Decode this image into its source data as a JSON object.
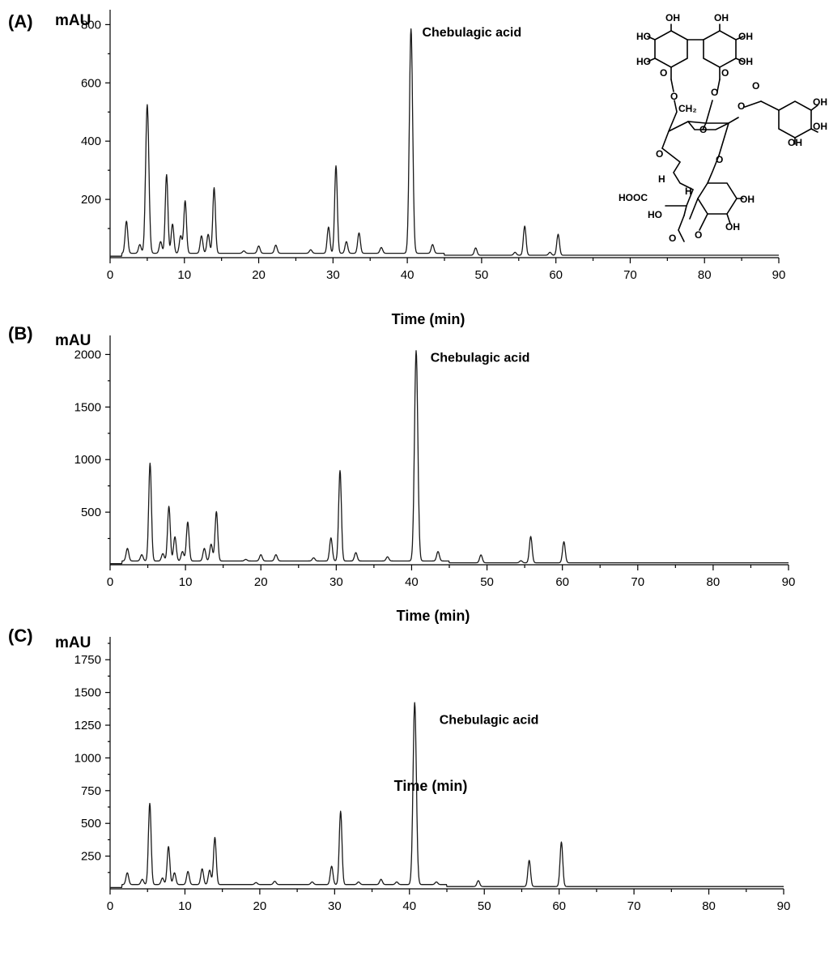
{
  "chart_data": [
    {
      "type": "line",
      "panel_label": "(A)",
      "ylabel": "mAU",
      "xlabel": "Time (min)",
      "xlim": [
        0,
        90
      ],
      "ylim": [
        0,
        840
      ],
      "x_ticks": [
        0,
        10,
        20,
        30,
        40,
        50,
        60,
        70,
        80,
        90
      ],
      "y_ticks": [
        200,
        400,
        600,
        800
      ],
      "annotation": {
        "text": "Chebulagic acid",
        "x": 42,
        "y": 760
      },
      "baseline": 5,
      "peaks": [
        {
          "t": 2.2,
          "h": 110
        },
        {
          "t": 4.0,
          "h": 30
        },
        {
          "t": 5.0,
          "h": 510
        },
        {
          "t": 6.8,
          "h": 40
        },
        {
          "t": 7.6,
          "h": 270
        },
        {
          "t": 8.4,
          "h": 100
        },
        {
          "t": 9.5,
          "h": 60
        },
        {
          "t": 10.1,
          "h": 180
        },
        {
          "t": 12.3,
          "h": 60
        },
        {
          "t": 13.2,
          "h": 65
        },
        {
          "t": 14.0,
          "h": 225
        },
        {
          "t": 18.0,
          "h": 8
        },
        {
          "t": 20.0,
          "h": 25
        },
        {
          "t": 22.3,
          "h": 28
        },
        {
          "t": 27.0,
          "h": 12
        },
        {
          "t": 29.4,
          "h": 90
        },
        {
          "t": 30.4,
          "h": 300
        },
        {
          "t": 31.8,
          "h": 40
        },
        {
          "t": 33.5,
          "h": 70
        },
        {
          "t": 36.5,
          "h": 20
        },
        {
          "t": 40.5,
          "h": 770
        },
        {
          "t": 43.4,
          "h": 30
        },
        {
          "t": 49.2,
          "h": 25
        },
        {
          "t": 54.5,
          "h": 10
        },
        {
          "t": 55.8,
          "h": 100
        },
        {
          "t": 59.2,
          "h": 10
        },
        {
          "t": 60.3,
          "h": 72
        }
      ]
    },
    {
      "type": "line",
      "panel_label": "(B)",
      "ylabel": "mAU",
      "xlabel": "Time (min)",
      "xlim": [
        0,
        90
      ],
      "ylim": [
        0,
        2150
      ],
      "x_ticks": [
        0,
        10,
        20,
        30,
        40,
        50,
        60,
        70,
        80,
        90
      ],
      "y_ticks": [
        500,
        1000,
        1500,
        2000
      ],
      "annotation": {
        "text": "Chebulagic acid",
        "x": 42.5,
        "y": 1930
      },
      "baseline": 10,
      "peaks": [
        {
          "t": 2.3,
          "h": 120
        },
        {
          "t": 4.2,
          "h": 60
        },
        {
          "t": 5.3,
          "h": 930
        },
        {
          "t": 7.0,
          "h": 70
        },
        {
          "t": 7.8,
          "h": 520
        },
        {
          "t": 8.6,
          "h": 230
        },
        {
          "t": 9.6,
          "h": 90
        },
        {
          "t": 10.3,
          "h": 370
        },
        {
          "t": 12.5,
          "h": 120
        },
        {
          "t": 13.4,
          "h": 160
        },
        {
          "t": 14.1,
          "h": 470
        },
        {
          "t": 18.0,
          "h": 15
        },
        {
          "t": 20.0,
          "h": 60
        },
        {
          "t": 22.0,
          "h": 60
        },
        {
          "t": 27.0,
          "h": 30
        },
        {
          "t": 29.3,
          "h": 220
        },
        {
          "t": 30.5,
          "h": 860
        },
        {
          "t": 32.6,
          "h": 80
        },
        {
          "t": 36.8,
          "h": 40
        },
        {
          "t": 40.6,
          "h": 2000
        },
        {
          "t": 43.5,
          "h": 90
        },
        {
          "t": 49.2,
          "h": 75
        },
        {
          "t": 54.5,
          "h": 20
        },
        {
          "t": 55.8,
          "h": 250
        },
        {
          "t": 60.2,
          "h": 200
        }
      ]
    },
    {
      "type": "line",
      "panel_label": "(C)",
      "ylabel": "mAU",
      "xlabel": "Time (min)",
      "xlim": [
        0,
        90
      ],
      "ylim": [
        0,
        1900
      ],
      "x_ticks": [
        0,
        10,
        20,
        30,
        40,
        50,
        60,
        70,
        80,
        90
      ],
      "y_ticks": [
        250,
        500,
        750,
        1000,
        1250,
        1500,
        1750
      ],
      "annotation": {
        "text": "Chebulagic acid",
        "x": 44,
        "y": 1260
      },
      "baseline": 10,
      "peaks": [
        {
          "t": 2.3,
          "h": 90
        },
        {
          "t": 4.3,
          "h": 40
        },
        {
          "t": 5.3,
          "h": 620
        },
        {
          "t": 7.0,
          "h": 50
        },
        {
          "t": 7.8,
          "h": 290
        },
        {
          "t": 8.6,
          "h": 90
        },
        {
          "t": 10.4,
          "h": 100
        },
        {
          "t": 12.3,
          "h": 120
        },
        {
          "t": 13.3,
          "h": 110
        },
        {
          "t": 14.0,
          "h": 360
        },
        {
          "t": 19.5,
          "h": 15
        },
        {
          "t": 22.0,
          "h": 25
        },
        {
          "t": 27.0,
          "h": 20
        },
        {
          "t": 29.6,
          "h": 140
        },
        {
          "t": 30.8,
          "h": 560
        },
        {
          "t": 33.2,
          "h": 20
        },
        {
          "t": 36.2,
          "h": 40
        },
        {
          "t": 38.3,
          "h": 20
        },
        {
          "t": 40.7,
          "h": 1390
        },
        {
          "t": 43.6,
          "h": 20
        },
        {
          "t": 49.2,
          "h": 45
        },
        {
          "t": 56.0,
          "h": 200
        },
        {
          "t": 60.3,
          "h": 340
        }
      ]
    }
  ],
  "structure": {
    "name": "chebulagic-acid-structure",
    "labels": [
      "OH",
      "OH",
      "HO",
      "OH",
      "HO",
      "OH",
      "O",
      "O",
      "O",
      "O",
      "CH₂",
      "O",
      "O",
      "OH",
      "OH",
      "OH",
      "O",
      "O",
      "O",
      "H",
      "H",
      "HOOC",
      "OH",
      "HO",
      "OH",
      "O",
      "O"
    ]
  }
}
